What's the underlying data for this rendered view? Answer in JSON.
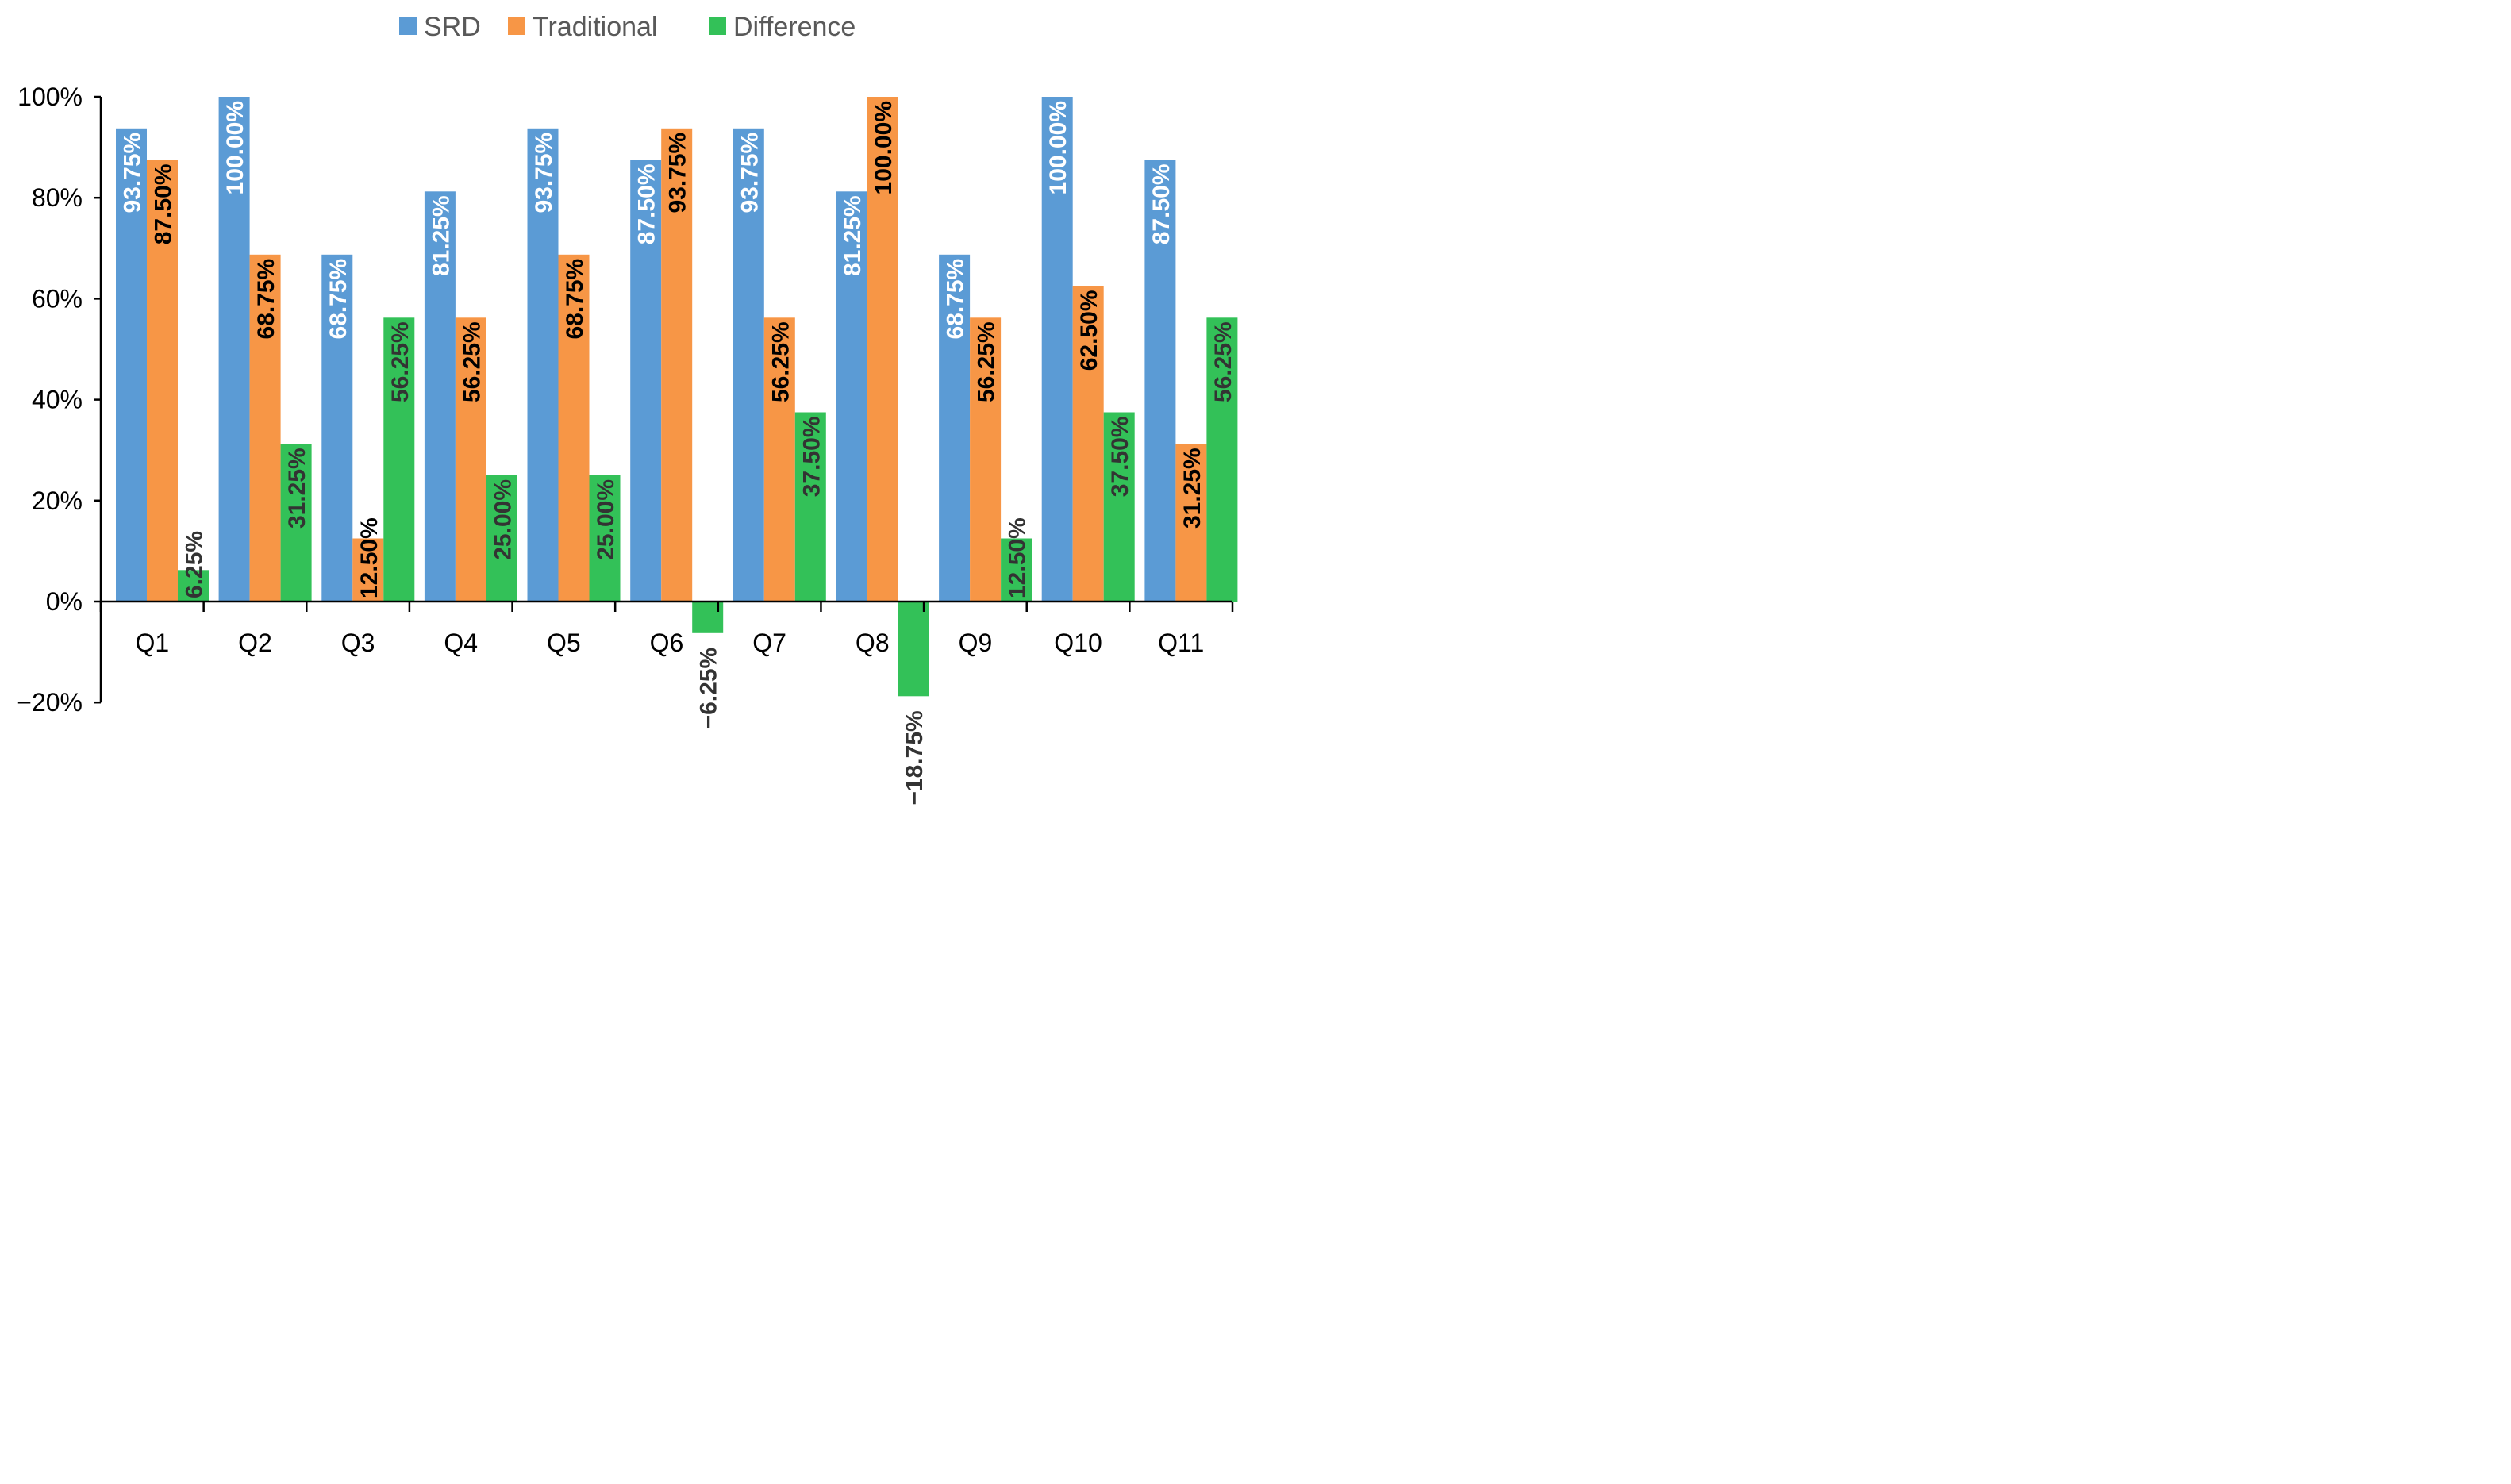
{
  "chart_data": {
    "type": "bar",
    "title": "",
    "xlabel": "",
    "ylabel": "",
    "ylim": [
      -20,
      100
    ],
    "y_ticks": [
      -20,
      0,
      20,
      40,
      60,
      80,
      100
    ],
    "y_tick_labels": [
      "−20%",
      "0%",
      "20%",
      "40%",
      "60%",
      "80%",
      "100%"
    ],
    "grid": false,
    "legend_position": "top-center",
    "categories": [
      "Q1",
      "Q2",
      "Q3",
      "Q4",
      "Q5",
      "Q6",
      "Q7",
      "Q8",
      "Q9",
      "Q10",
      "Q11"
    ],
    "series": [
      {
        "name": "SRD",
        "color": "#5B9BD5",
        "label_color": "#ffffff",
        "values": [
          93.75,
          100,
          68.75,
          81.25,
          93.75,
          87.5,
          93.75,
          81.25,
          68.75,
          100,
          87.5
        ],
        "labels": [
          "93.75%",
          "100.00%",
          "68.75%",
          "81.25%",
          "93.75%",
          "87.50%",
          "93.75%",
          "81.25%",
          "68.75%",
          "100.00%",
          "87.50%"
        ]
      },
      {
        "name": "Traditional",
        "color": "#F79646",
        "label_color": "#000000",
        "values": [
          87.5,
          68.75,
          12.5,
          56.25,
          68.75,
          93.75,
          56.25,
          100,
          56.25,
          62.5,
          31.25
        ],
        "labels": [
          "87.50%",
          "68.75%",
          "12.50%",
          "56.25%",
          "68.75%",
          "93.75%",
          "56.25%",
          "100.00%",
          "56.25%",
          "62.50%",
          "31.25%"
        ]
      },
      {
        "name": "Difference",
        "color": "#33C158",
        "label_color": "#333333",
        "values": [
          6.25,
          31.25,
          56.25,
          25,
          25,
          -6.25,
          37.5,
          -18.75,
          12.5,
          37.5,
          56.25
        ],
        "labels": [
          "6.25%",
          "31.25%",
          "56.25%",
          "25.00%",
          "25.00%",
          "−6.25%",
          "37.50%",
          "−18.75%",
          "12.50%",
          "37.50%",
          "56.25%"
        ]
      }
    ]
  }
}
